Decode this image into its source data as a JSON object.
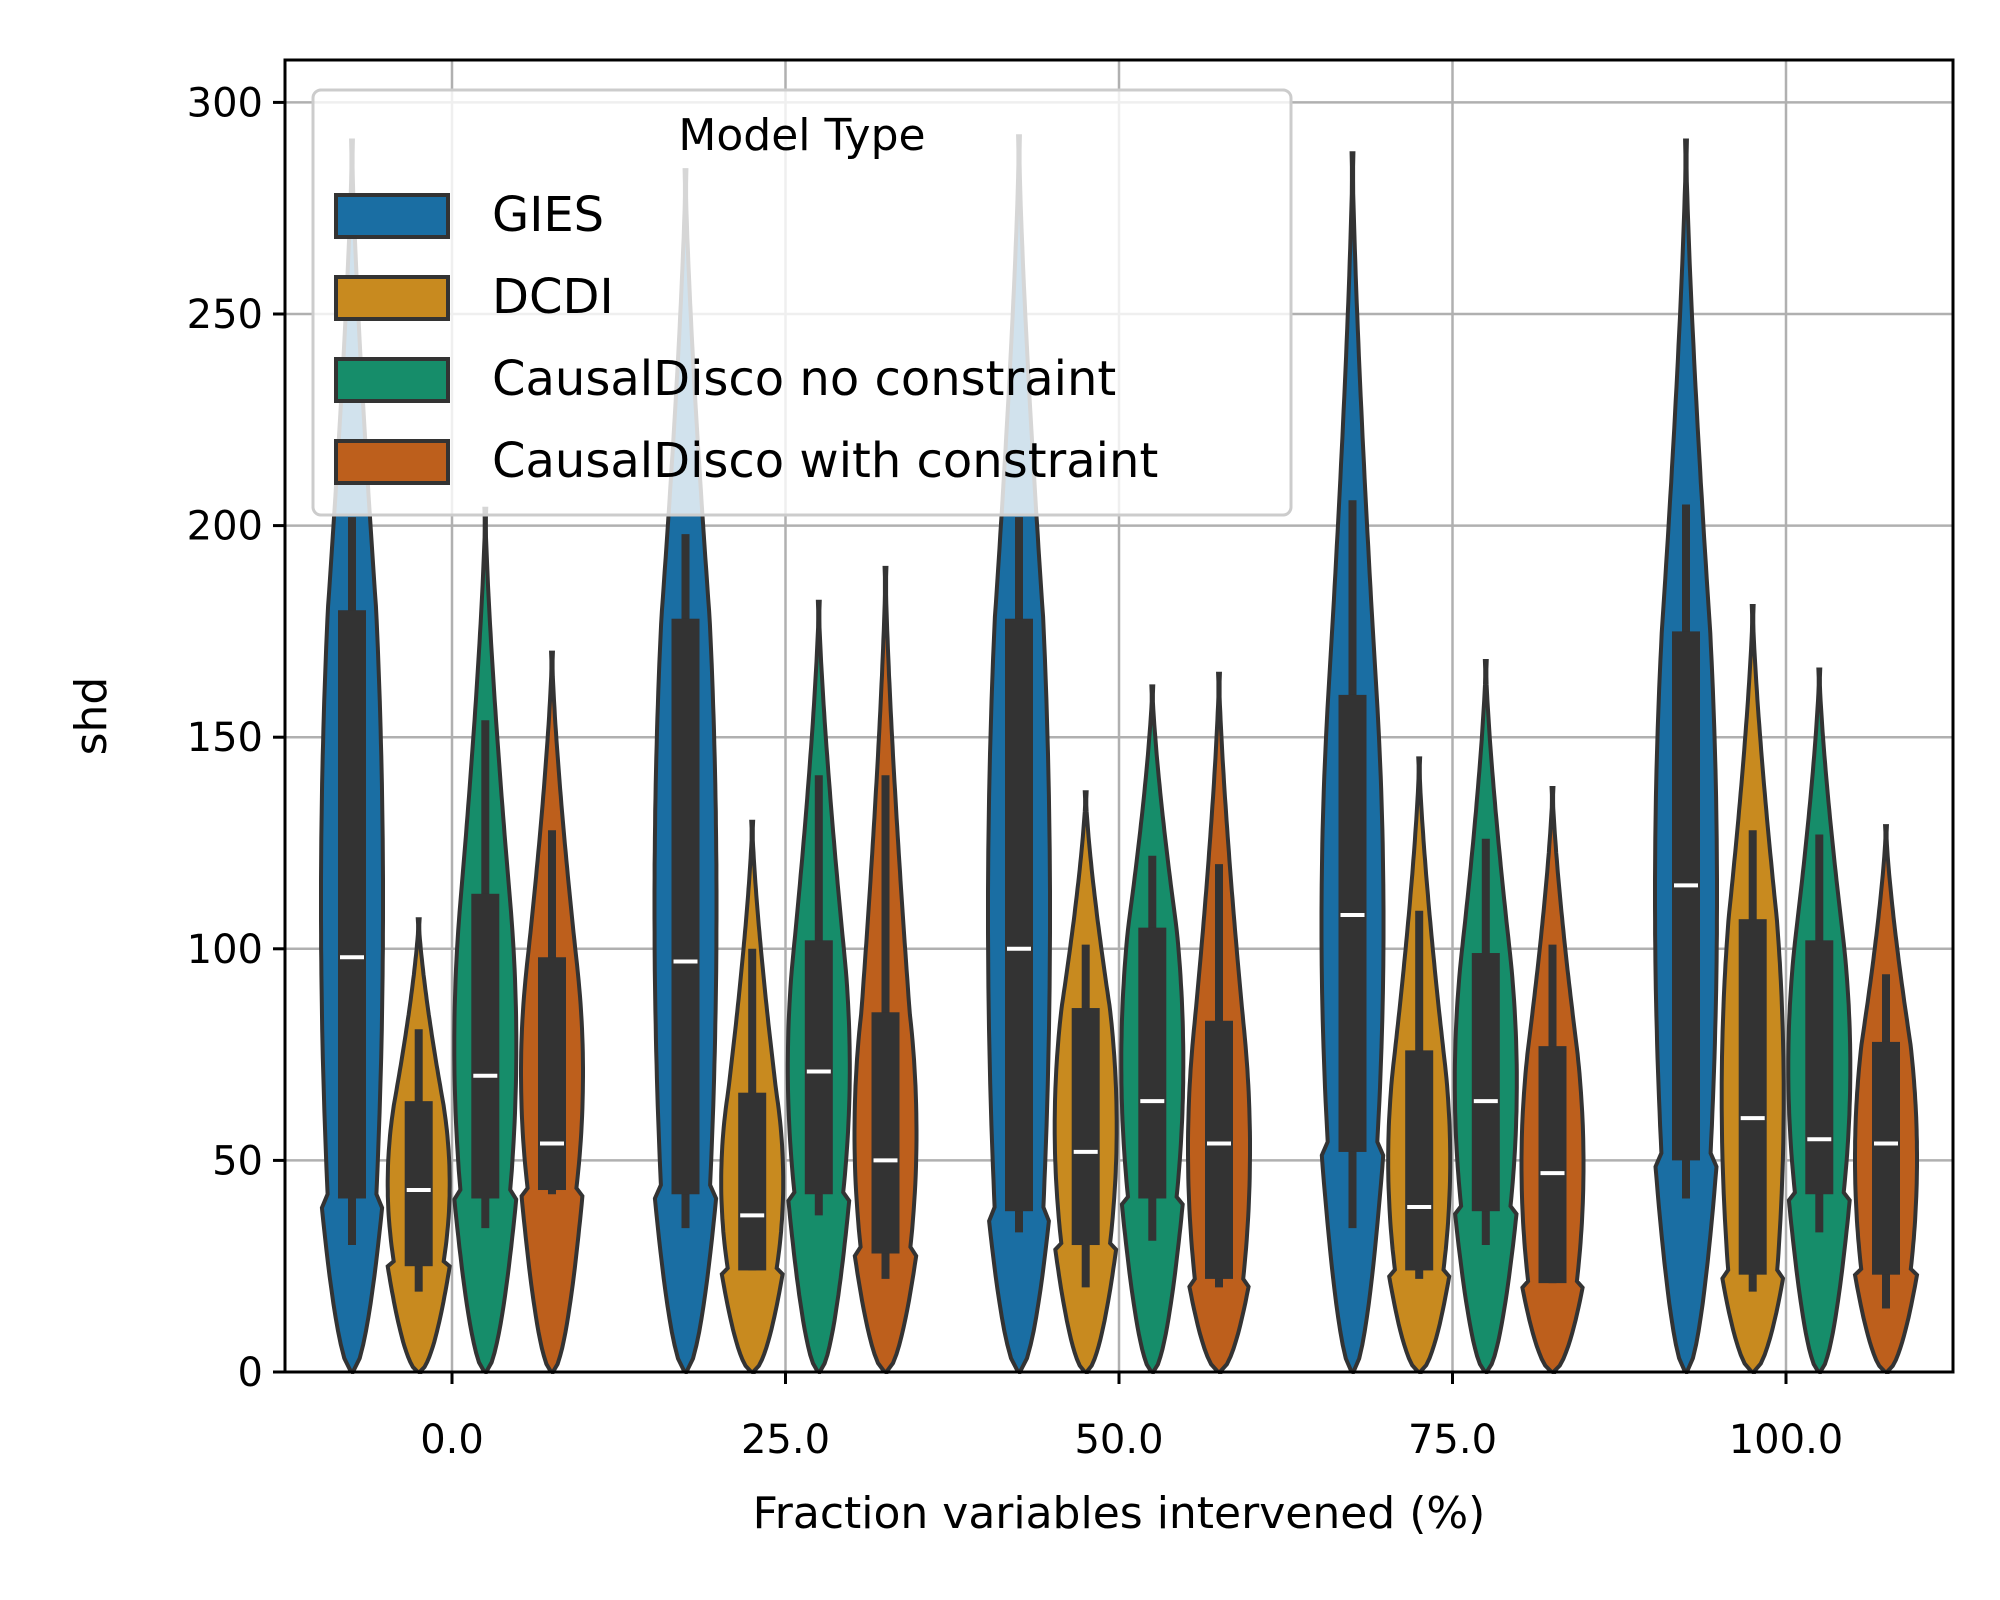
{
  "chart_data": {
    "type": "violin",
    "xlabel": "Fraction variables intervened (%)",
    "ylabel": "shd",
    "ylim": [
      0,
      310
    ],
    "yticks": [
      0,
      50,
      100,
      150,
      200,
      250,
      300
    ],
    "categories": [
      "0.0",
      "25.0",
      "50.0",
      "75.0",
      "100.0"
    ],
    "grid": true,
    "legend": {
      "title": "Model Type",
      "placement": "top-left"
    },
    "series": [
      {
        "name": "GIES",
        "color": "#1a6ea3",
        "stats": [
          {
            "top": 291,
            "whisker_low": 30,
            "whisker_high": 202,
            "q1": 41,
            "q3": 180,
            "median": 98
          },
          {
            "top": 284,
            "whisker_low": 34,
            "whisker_high": 198,
            "q1": 42,
            "q3": 178,
            "median": 97
          },
          {
            "top": 292,
            "whisker_low": 33,
            "whisker_high": 202,
            "q1": 38,
            "q3": 178,
            "median": 100
          },
          {
            "top": 288,
            "whisker_low": 34,
            "whisker_high": 206,
            "q1": 52,
            "q3": 160,
            "median": 108
          },
          {
            "top": 291,
            "whisker_low": 41,
            "whisker_high": 205,
            "q1": 50,
            "q3": 175,
            "median": 115
          }
        ]
      },
      {
        "name": "DCDI",
        "color": "#c88a1f",
        "stats": [
          {
            "top": 107,
            "whisker_low": 19,
            "whisker_high": 81,
            "q1": 25,
            "q3": 64,
            "median": 43
          },
          {
            "top": 130,
            "whisker_low": 24,
            "whisker_high": 100,
            "q1": 24,
            "q3": 66,
            "median": 37
          },
          {
            "top": 137,
            "whisker_low": 20,
            "whisker_high": 101,
            "q1": 30,
            "q3": 86,
            "median": 52
          },
          {
            "top": 145,
            "whisker_low": 22,
            "whisker_high": 109,
            "q1": 24,
            "q3": 76,
            "median": 39
          },
          {
            "top": 181,
            "whisker_low": 19,
            "whisker_high": 128,
            "q1": 23,
            "q3": 107,
            "median": 60
          }
        ]
      },
      {
        "name": "CausalDisco no constraint",
        "color": "#168d6a",
        "stats": [
          {
            "top": 204,
            "whisker_low": 34,
            "whisker_high": 154,
            "q1": 41,
            "q3": 113,
            "median": 70
          },
          {
            "top": 182,
            "whisker_low": 37,
            "whisker_high": 141,
            "q1": 42,
            "q3": 102,
            "median": 71
          },
          {
            "top": 162,
            "whisker_low": 31,
            "whisker_high": 122,
            "q1": 41,
            "q3": 105,
            "median": 64
          },
          {
            "top": 168,
            "whisker_low": 30,
            "whisker_high": 126,
            "q1": 38,
            "q3": 99,
            "median": 64
          },
          {
            "top": 166,
            "whisker_low": 33,
            "whisker_high": 127,
            "q1": 42,
            "q3": 102,
            "median": 55
          }
        ]
      },
      {
        "name": "CausalDisco with constraint",
        "color": "#bd5f1c",
        "stats": [
          {
            "top": 170,
            "whisker_low": 42,
            "whisker_high": 128,
            "q1": 43,
            "q3": 98,
            "median": 54
          },
          {
            "top": 190,
            "whisker_low": 22,
            "whisker_high": 141,
            "q1": 28,
            "q3": 85,
            "median": 50
          },
          {
            "top": 165,
            "whisker_low": 20,
            "whisker_high": 120,
            "q1": 22,
            "q3": 83,
            "median": 54
          },
          {
            "top": 138,
            "whisker_low": 21,
            "whisker_high": 101,
            "q1": 21,
            "q3": 77,
            "median": 47
          },
          {
            "top": 129,
            "whisker_low": 15,
            "whisker_high": 94,
            "q1": 23,
            "q3": 78,
            "median": 54
          }
        ]
      }
    ]
  }
}
